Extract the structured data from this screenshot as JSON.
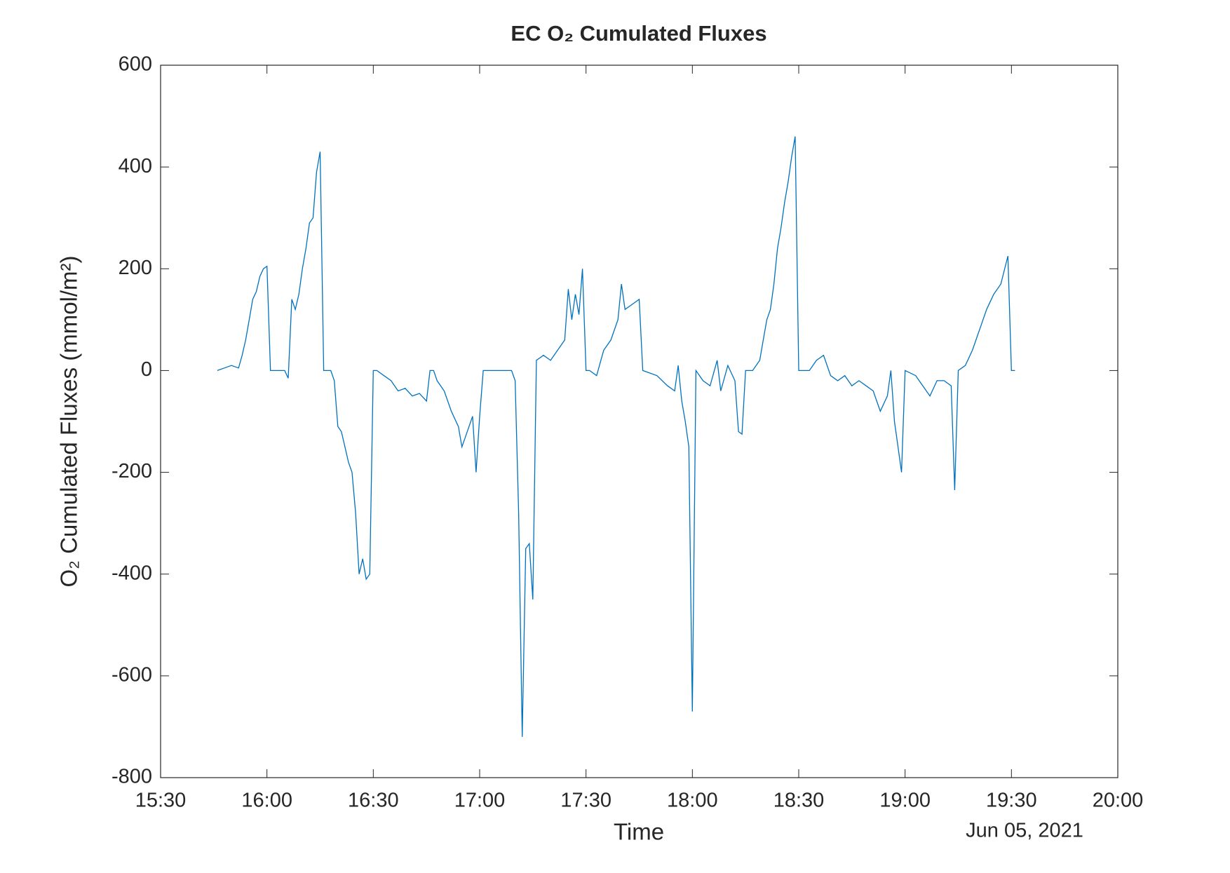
{
  "chart_data": {
    "type": "line",
    "title": "EC O₂ Cumulated Fluxes",
    "x_label": "Time",
    "y_label": "O₂ Cumulated Fluxes (mmol/m²)",
    "x_annotation": "Jun 05, 2021",
    "color": "#0072bd",
    "x": [
      "15:46",
      "15:48",
      "15:50",
      "15:52",
      "15:53",
      "15:54",
      "15:55",
      "15:56",
      "15:57",
      "15:58",
      "15:59",
      "16:00",
      "16:01",
      "16:05",
      "16:06",
      "16:07",
      "16:08",
      "16:09",
      "16:10",
      "16:11",
      "16:12",
      "16:13",
      "16:14",
      "16:15",
      "16:16",
      "16:18",
      "16:19",
      "16:20",
      "16:21",
      "16:22",
      "16:23",
      "16:24",
      "16:25",
      "16:26",
      "16:27",
      "16:28",
      "16:29",
      "16:30",
      "16:31",
      "16:33",
      "16:35",
      "16:37",
      "16:39",
      "16:41",
      "16:43",
      "16:45",
      "16:46",
      "16:47",
      "16:48",
      "16:50",
      "16:52",
      "16:54",
      "16:55",
      "16:56",
      "16:57",
      "16:58",
      "16:59",
      "17:00",
      "17:01",
      "17:09",
      "17:10",
      "17:11",
      "17:12",
      "17:13",
      "17:14",
      "17:15",
      "17:16",
      "17:18",
      "17:20",
      "17:22",
      "17:24",
      "17:25",
      "17:26",
      "17:27",
      "17:28",
      "17:29",
      "17:30",
      "17:31",
      "17:33",
      "17:35",
      "17:37",
      "17:39",
      "17:40",
      "17:41",
      "17:43",
      "17:45",
      "17:46",
      "17:50",
      "17:53",
      "17:55",
      "17:56",
      "17:57",
      "17:58",
      "17:59",
      "18:00",
      "18:01",
      "18:03",
      "18:05",
      "18:07",
      "18:08",
      "18:10",
      "18:12",
      "18:13",
      "18:14",
      "18:15",
      "18:17",
      "18:19",
      "18:20",
      "18:21",
      "18:22",
      "18:23",
      "18:24",
      "18:25",
      "18:26",
      "18:27",
      "18:28",
      "18:29",
      "18:30",
      "18:33",
      "18:35",
      "18:37",
      "18:39",
      "18:41",
      "18:43",
      "18:45",
      "18:47",
      "18:49",
      "18:51",
      "18:53",
      "18:55",
      "18:56",
      "18:57",
      "18:58",
      "18:59",
      "19:00",
      "19:03",
      "19:05",
      "19:07",
      "19:09",
      "19:11",
      "19:13",
      "19:14",
      "19:15",
      "19:17",
      "19:19",
      "19:21",
      "19:23",
      "19:25",
      "19:27",
      "19:29",
      "19:30",
      "19:31"
    ],
    "values": [
      0,
      5,
      10,
      5,
      30,
      60,
      100,
      140,
      155,
      185,
      200,
      205,
      0,
      0,
      -15,
      140,
      120,
      150,
      200,
      240,
      290,
      300,
      390,
      430,
      0,
      0,
      -20,
      -110,
      -120,
      -150,
      -180,
      -200,
      -280,
      -400,
      -370,
      -410,
      -400,
      0,
      0,
      -10,
      -20,
      -40,
      -35,
      -50,
      -45,
      -60,
      0,
      0,
      -20,
      -40,
      -80,
      -110,
      -150,
      -130,
      -110,
      -90,
      -200,
      -90,
      0,
      0,
      -20,
      -280,
      -720,
      -350,
      -340,
      -450,
      20,
      30,
      20,
      40,
      60,
      160,
      100,
      150,
      110,
      200,
      0,
      0,
      -10,
      40,
      60,
      100,
      170,
      120,
      130,
      140,
      0,
      -10,
      -30,
      -40,
      10,
      -60,
      -100,
      -150,
      -670,
      0,
      -20,
      -30,
      20,
      -40,
      10,
      -20,
      -120,
      -125,
      0,
      0,
      20,
      60,
      100,
      120,
      170,
      240,
      280,
      330,
      370,
      420,
      460,
      0,
      0,
      20,
      30,
      -10,
      -20,
      -10,
      -30,
      -20,
      -30,
      -40,
      -80,
      -50,
      0,
      -100,
      -150,
      -200,
      0,
      -10,
      -30,
      -50,
      -20,
      -20,
      -30,
      -235,
      0,
      10,
      40,
      80,
      120,
      150,
      170,
      225,
      0,
      0
    ],
    "xlim": [
      "15:30",
      "20:00"
    ],
    "xticks": [
      "15:30",
      "16:00",
      "16:30",
      "17:00",
      "17:30",
      "18:00",
      "18:30",
      "19:00",
      "19:30",
      "20:00"
    ],
    "ylim": [
      -800,
      600
    ],
    "yticks": [
      -800,
      -600,
      -400,
      -200,
      0,
      200,
      400,
      600
    ]
  }
}
